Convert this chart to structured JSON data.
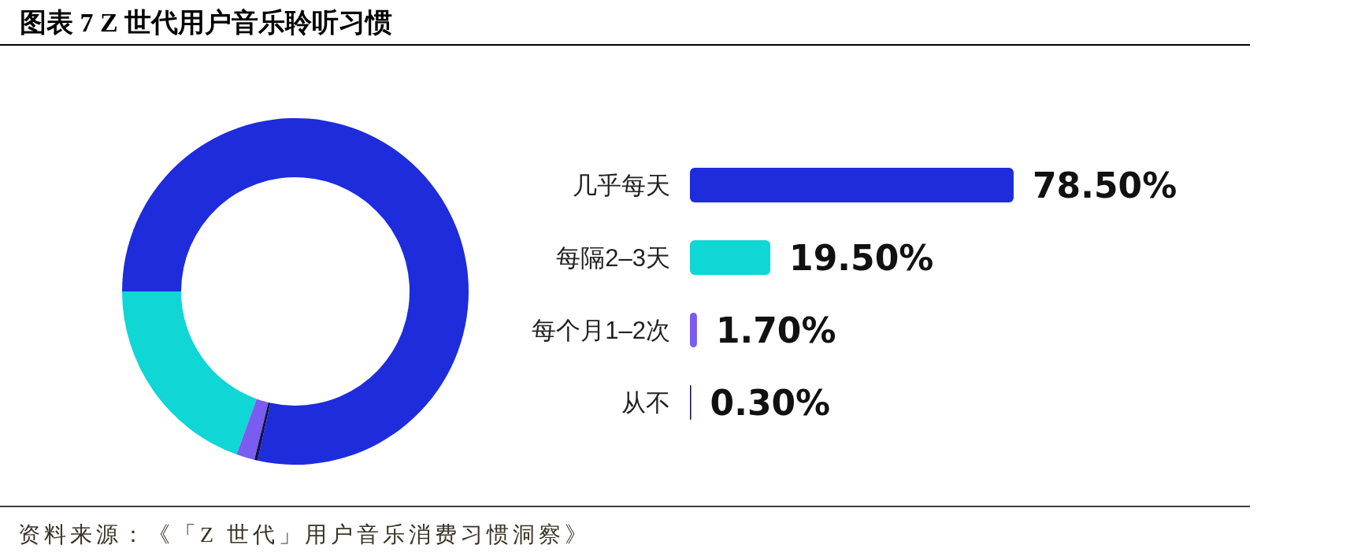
{
  "chart_data": [
    {
      "type": "donut",
      "title": "图表 7 Z 世代用户音乐聆听习惯",
      "categories": [
        null,
        null,
        null,
        null
      ],
      "values": [
        78.5,
        19.5,
        1.7,
        0.3
      ],
      "colors": [
        "#1e2cdc",
        "#10d6d6",
        "#7a5cf0",
        "#12124f"
      ]
    },
    {
      "type": "bar",
      "orientation": "horizontal",
      "categories": [
        "几乎每天",
        "每隔2–3天",
        "每个月1–2次",
        "从不"
      ],
      "values": [
        78.5,
        19.5,
        1.7,
        0.3
      ],
      "colors": [
        "#1e2cdc",
        "#10d6d6",
        "#7a5cf0",
        "#12124f"
      ],
      "value_labels": [
        "78.50%",
        "19.50%",
        "1.70%",
        "0.30%"
      ],
      "annotations": [
        "资料来源：《「Z 世代」用户音乐消费习惯洞察》"
      ]
    }
  ]
}
